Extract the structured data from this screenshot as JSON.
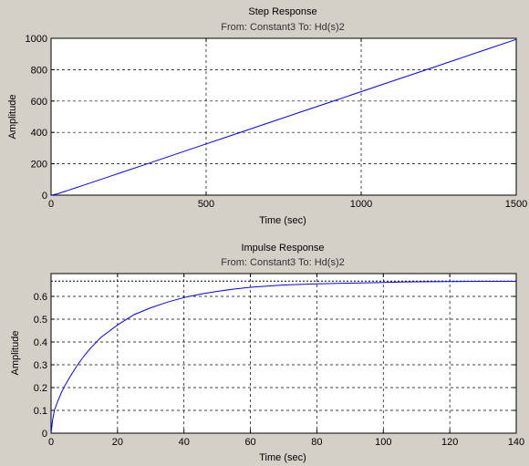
{
  "figure": {
    "background": "#d4d0c8"
  },
  "chart_data": [
    {
      "type": "line",
      "title": "Step Response",
      "subtitle": "From: Constant3  To: Hd(s)2",
      "xlabel": "Time (sec)",
      "ylabel": "Amplitude",
      "xlim": [
        0,
        1500
      ],
      "ylim": [
        0,
        1000
      ],
      "xticks": [
        0,
        500,
        1000,
        1500
      ],
      "yticks": [
        0,
        200,
        400,
        600,
        800,
        1000
      ],
      "grid": true,
      "line_color": "#0000ff",
      "series": [
        {
          "x": [
            0,
            20,
            40,
            60,
            80,
            100,
            200,
            300,
            400,
            500,
            600,
            700,
            800,
            900,
            1000,
            1100,
            1200,
            1300,
            1400,
            1500
          ],
          "y": [
            0,
            8,
            21,
            34,
            47,
            60,
            127,
            193,
            260,
            327,
            393,
            460,
            527,
            593,
            660,
            727,
            793,
            860,
            927,
            993
          ]
        }
      ]
    },
    {
      "type": "line",
      "title": "Impulse Response",
      "subtitle": "From: Constant3  To: Hd(s)2",
      "xlabel": "Time (sec)",
      "ylabel": "Amplitude",
      "xlim": [
        0,
        140
      ],
      "ylim": [
        0,
        0.7
      ],
      "xticks": [
        0,
        20,
        40,
        60,
        80,
        100,
        120,
        140
      ],
      "yticks": [
        0,
        0.1,
        0.2,
        0.3,
        0.4,
        0.5,
        0.6
      ],
      "grid": true,
      "line_color": "#0000ff",
      "steady_state": 0.667,
      "series": [
        {
          "x": [
            0,
            0.5,
            1,
            2,
            3,
            4,
            5,
            6,
            8,
            10,
            12,
            15,
            20,
            25,
            30,
            35,
            40,
            45,
            50,
            55,
            60,
            70,
            80,
            90,
            100,
            105,
            110,
            120,
            130,
            140
          ],
          "y": [
            0,
            0.06,
            0.1,
            0.14,
            0.175,
            0.205,
            0.23,
            0.255,
            0.3,
            0.34,
            0.375,
            0.42,
            0.475,
            0.52,
            0.55,
            0.575,
            0.595,
            0.61,
            0.622,
            0.632,
            0.64,
            0.65,
            0.655,
            0.658,
            0.661,
            0.663,
            0.664,
            0.665,
            0.666,
            0.666
          ]
        }
      ]
    }
  ]
}
